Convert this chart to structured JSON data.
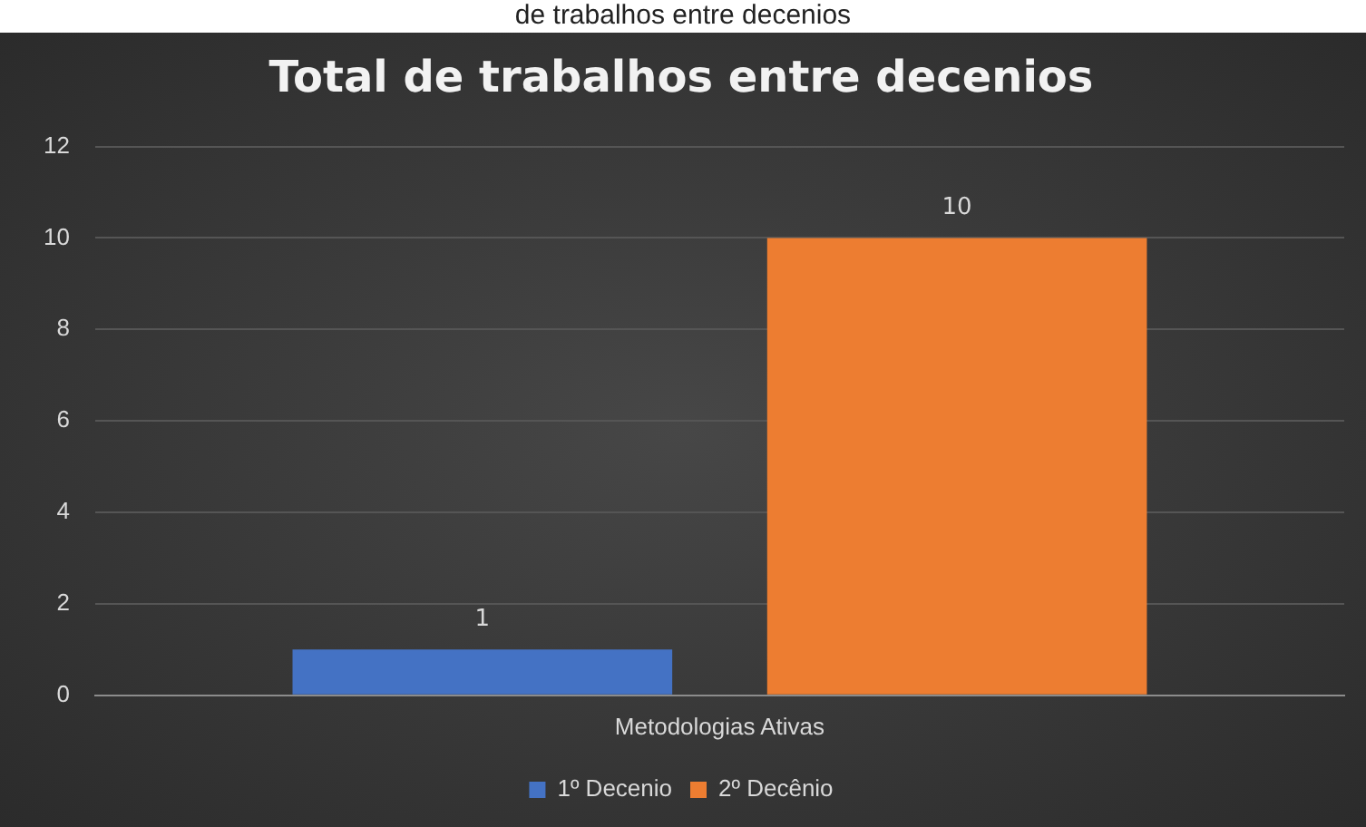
{
  "chart_data": {
    "type": "bar",
    "title": "Total de trabalhos entre decenios",
    "annotations": [
      "de trabalhos entre decenios"
    ],
    "categories": [
      "Metodologias Ativas"
    ],
    "series": [
      {
        "name": "1º Decenio",
        "color": "#4472c4",
        "values": [
          1
        ]
      },
      {
        "name": "2º Decênio",
        "color": "#ed7d31",
        "values": [
          10
        ]
      }
    ],
    "ylim": [
      0,
      12
    ],
    "yticks": [
      0,
      2,
      4,
      6,
      8,
      10,
      12
    ],
    "grid": "y",
    "legend": "bottom",
    "data_labels": true
  }
}
